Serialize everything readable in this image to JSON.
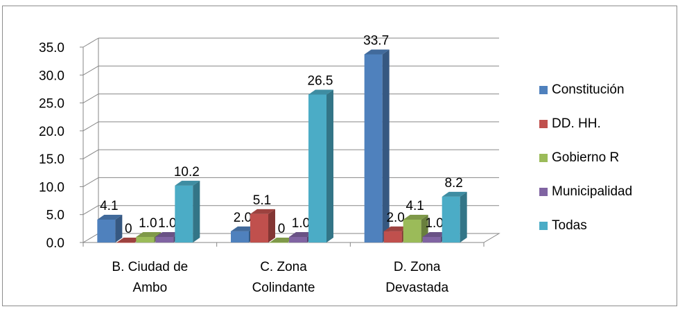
{
  "chart_data": {
    "type": "bar",
    "title": "",
    "xlabel": "",
    "ylabel": "",
    "ylim": [
      0,
      35
    ],
    "yticks": [
      "0.0",
      "5.0",
      "10.0",
      "15.0",
      "20.0",
      "25.0",
      "30.0",
      "35.0"
    ],
    "grid": true,
    "legend_position": "right",
    "categories": [
      [
        "B.  Ciudad de",
        "Ambo"
      ],
      [
        "C.  Zona",
        "Colindante"
      ],
      [
        "D.  Zona",
        "Devastada"
      ]
    ],
    "series": [
      {
        "name": "Constitución",
        "color": "#4f81bd",
        "values": [
          4.1,
          2.0,
          33.7
        ],
        "labels": [
          "4.1",
          "2.0",
          "33.7"
        ]
      },
      {
        "name": "DD. HH.",
        "color": "#c0504d",
        "values": [
          0,
          5.1,
          2.0
        ],
        "labels": [
          "0",
          "5.1",
          "2.0"
        ]
      },
      {
        "name": "Gobierno R",
        "color": "#9bbb59",
        "values": [
          1.0,
          0,
          4.1
        ],
        "labels": [
          "1.0",
          "0",
          "4.1"
        ]
      },
      {
        "name": "Municipalidad",
        "color": "#8064a2",
        "values": [
          1.0,
          1.0,
          1.0
        ],
        "labels": [
          "1.0",
          "1.0",
          "1.0"
        ]
      },
      {
        "name": "Todas",
        "color": "#4bacc6",
        "values": [
          10.2,
          26.5,
          8.2
        ],
        "labels": [
          "10.2",
          "26.5",
          "8.2"
        ]
      }
    ]
  }
}
